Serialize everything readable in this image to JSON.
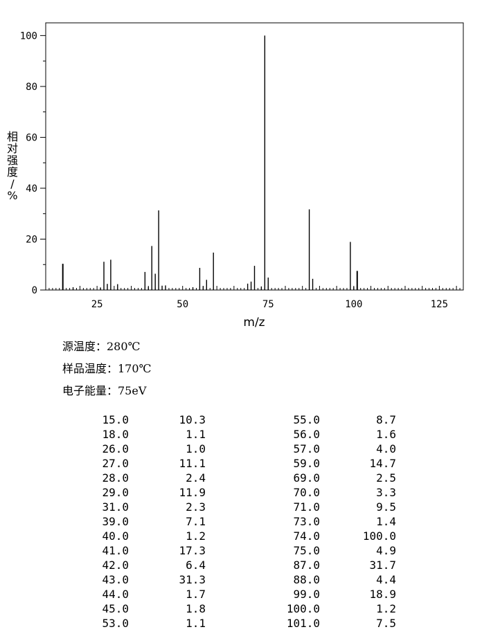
{
  "chart_data": {
    "type": "bar",
    "xlabel": "m/z",
    "ylabel": "相对强度/%",
    "xlim": [
      10,
      132
    ],
    "ylim": [
      0,
      105
    ],
    "x_ticks": [
      25,
      50,
      75,
      100,
      125
    ],
    "y_ticks": [
      0,
      20,
      40,
      60,
      80,
      100
    ],
    "grid": false,
    "series": [
      {
        "x": [
          15,
          18,
          26,
          27,
          28,
          29,
          31,
          39,
          40,
          41,
          42,
          43,
          44,
          45,
          53,
          55,
          56,
          57,
          59,
          69,
          70,
          71,
          73,
          74,
          75,
          87,
          88,
          99,
          100,
          101
        ],
        "values": [
          10.3,
          1.1,
          1.0,
          11.1,
          2.4,
          11.9,
          2.3,
          7.1,
          1.2,
          17.3,
          6.4,
          31.3,
          1.7,
          1.8,
          1.1,
          8.7,
          1.6,
          4.0,
          14.7,
          2.5,
          3.3,
          9.5,
          1.4,
          100.0,
          4.9,
          31.7,
          4.4,
          18.9,
          1.2,
          7.5
        ]
      }
    ]
  },
  "conditions": {
    "source_temp": "源温度：280℃",
    "sample_temp": "样品温度：170℃",
    "electron_energy": "电子能量：75eV"
  },
  "peak_table": {
    "left": [
      {
        "mz": "15.0",
        "abundance": "10.3"
      },
      {
        "mz": "18.0",
        "abundance": "1.1"
      },
      {
        "mz": "26.0",
        "abundance": "1.0"
      },
      {
        "mz": "27.0",
        "abundance": "11.1"
      },
      {
        "mz": "28.0",
        "abundance": "2.4"
      },
      {
        "mz": "29.0",
        "abundance": "11.9"
      },
      {
        "mz": "31.0",
        "abundance": "2.3"
      },
      {
        "mz": "39.0",
        "abundance": "7.1"
      },
      {
        "mz": "40.0",
        "abundance": "1.2"
      },
      {
        "mz": "41.0",
        "abundance": "17.3"
      },
      {
        "mz": "42.0",
        "abundance": "6.4"
      },
      {
        "mz": "43.0",
        "abundance": "31.3"
      },
      {
        "mz": "44.0",
        "abundance": "1.7"
      },
      {
        "mz": "45.0",
        "abundance": "1.8"
      },
      {
        "mz": "53.0",
        "abundance": "1.1"
      }
    ],
    "right": [
      {
        "mz": "55.0",
        "abundance": "8.7"
      },
      {
        "mz": "56.0",
        "abundance": "1.6"
      },
      {
        "mz": "57.0",
        "abundance": "4.0"
      },
      {
        "mz": "59.0",
        "abundance": "14.7"
      },
      {
        "mz": "69.0",
        "abundance": "2.5"
      },
      {
        "mz": "70.0",
        "abundance": "3.3"
      },
      {
        "mz": "71.0",
        "abundance": "9.5"
      },
      {
        "mz": "73.0",
        "abundance": "1.4"
      },
      {
        "mz": "74.0",
        "abundance": "100.0"
      },
      {
        "mz": "75.0",
        "abundance": "4.9"
      },
      {
        "mz": "87.0",
        "abundance": "31.7"
      },
      {
        "mz": "88.0",
        "abundance": "4.4"
      },
      {
        "mz": "99.0",
        "abundance": "18.9"
      },
      {
        "mz": "100.0",
        "abundance": "1.2"
      },
      {
        "mz": "101.0",
        "abundance": "7.5"
      }
    ]
  }
}
